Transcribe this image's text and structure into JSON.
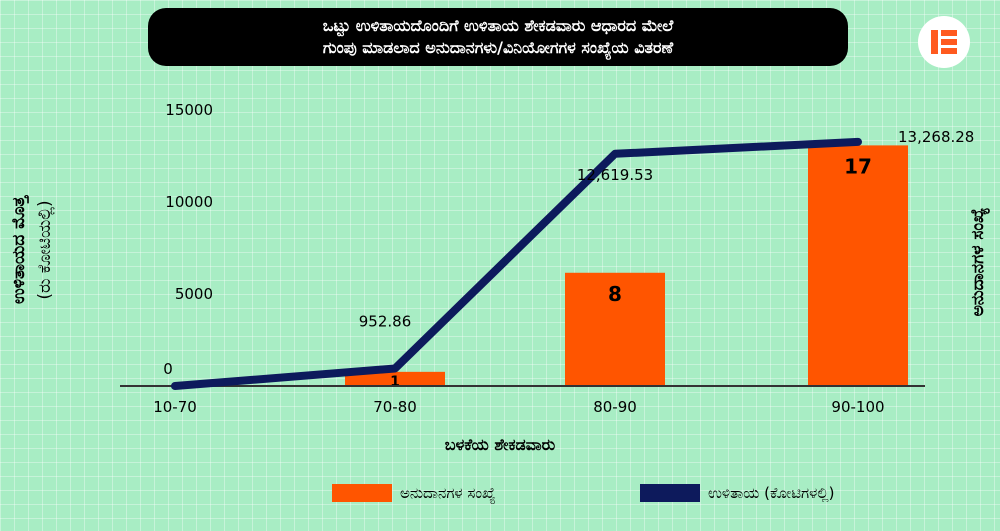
{
  "header": {
    "title_line1": "ಒಟ್ಟು ಉಳಿತಾಯದೊಂದಿಗೆ ಉಳಿತಾಯ ಶೇಕಡವಾರು ಆಧಾರದ ಮೇಲೆ",
    "title_line2": "ಗುಂಪು ಮಾಡಲಾದ ಅನುದಾನಗಳು/ವಿನಿಯೋಗಗಳ ಸಂಖ್ಯೆಯ ವಿತರಣೆ"
  },
  "logo": {
    "icon": "e-logo-icon",
    "color": "#ff5a1f"
  },
  "chart_data": {
    "type": "bar",
    "categories": [
      "10-70",
      "70-80",
      "80-90",
      "90-100"
    ],
    "xlabel": "ಬಳಕೆಯ ಶೇಕಡವಾರು",
    "ylabel_left_line1": "ಉಳಿತಾಯದ ಮೊತ್ತ",
    "ylabel_left_line2": "(ರು ಕೋಟಿಯಲ್ಲಿ)",
    "ylabel_right": "ಅನುದಾನಗಳ ಸಂಖ್ಯೆ",
    "y_ticks": [
      "15000",
      "10000",
      "5000",
      "0"
    ],
    "ylim": [
      0,
      15000
    ],
    "series": [
      {
        "name": "ಅನುದಾನಗಳ ಸಂಖ್ಯೆ",
        "type": "bar",
        "color": "#ff5500",
        "values": [
          0,
          1,
          8,
          17
        ],
        "labels": [
          "",
          "1",
          "8",
          "17"
        ]
      },
      {
        "name": "ಉಳಿತಾಯ (ಕೋಟಿಗಳಲ್ಲಿ)",
        "type": "line",
        "color": "#0d1a5c",
        "values": [
          0,
          952.86,
          12619.53,
          13268.28
        ],
        "labels": [
          "0",
          "952.86",
          "12,619.53",
          "13,268.28"
        ]
      }
    ],
    "bar_axis_max": 19.5,
    "legend_position": "bottom"
  }
}
